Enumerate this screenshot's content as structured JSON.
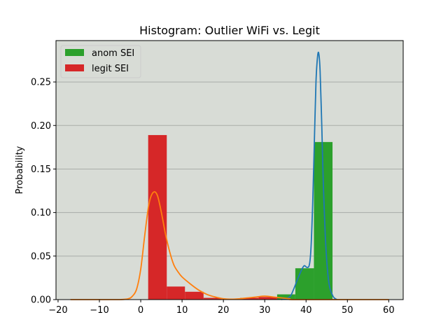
{
  "chart_data": {
    "type": "bar",
    "title": "Histogram: Outlier WiFi  vs. Legit",
    "xlabel": "",
    "ylabel": "Probability",
    "xlim": [
      -20.5,
      63.5
    ],
    "ylim": [
      0,
      0.2975
    ],
    "xticks": [
      -20,
      -10,
      0,
      10,
      20,
      30,
      40,
      50,
      60
    ],
    "yticks": [
      0.0,
      0.05,
      0.1,
      0.15,
      0.2,
      0.25
    ],
    "xtick_labels": [
      "−20",
      "−10",
      "0",
      "10",
      "20",
      "30",
      "40",
      "50",
      "60"
    ],
    "ytick_labels": [
      "0.00",
      "0.05",
      "0.10",
      "0.15",
      "0.20",
      "0.25"
    ],
    "grid": "horizontal",
    "background": "#d8dcd6",
    "legend_position": "top-left",
    "series": [
      {
        "name": "anom SEI",
        "kind": "histogram",
        "color": "#2ca02c",
        "bins": [
          {
            "x0": 33.0,
            "x1": 37.4,
            "y": 0.006
          },
          {
            "x0": 37.4,
            "x1": 41.9,
            "y": 0.036
          },
          {
            "x0": 41.9,
            "x1": 46.4,
            "y": 0.181
          }
        ]
      },
      {
        "name": "legit SEI",
        "kind": "histogram",
        "color": "#d62728",
        "bins": [
          {
            "x0": 1.8,
            "x1": 6.3,
            "y": 0.189
          },
          {
            "x0": 6.3,
            "x1": 10.7,
            "y": 0.015
          },
          {
            "x0": 10.7,
            "x1": 15.2,
            "y": 0.009
          },
          {
            "x0": 15.2,
            "x1": 19.6,
            "y": 0.002
          },
          {
            "x0": 19.6,
            "x1": 24.1,
            "y": 0.001
          },
          {
            "x0": 24.1,
            "x1": 28.5,
            "y": 0.002
          },
          {
            "x0": 28.5,
            "x1": 33.0,
            "y": 0.003
          }
        ]
      },
      {
        "name": "",
        "kind": "kde",
        "color": "#1f77b4",
        "x": [
          34,
          36,
          37,
          38,
          39,
          39.6,
          40.2,
          40.8,
          41.2,
          41.6,
          42.0,
          42.4,
          42.8,
          43.1,
          43.4,
          43.8,
          44.2,
          44.8,
          45.5,
          46.5,
          47.5
        ],
        "y": [
          0.0,
          0.003,
          0.012,
          0.024,
          0.035,
          0.039,
          0.037,
          0.04,
          0.06,
          0.11,
          0.18,
          0.25,
          0.28,
          0.282,
          0.262,
          0.2,
          0.13,
          0.06,
          0.02,
          0.004,
          0.0
        ]
      },
      {
        "name": "",
        "kind": "kde",
        "color": "#ff7f0e",
        "x": [
          -17,
          -10,
          -5,
          -3,
          -2,
          -1,
          0,
          1,
          2,
          3,
          4,
          5,
          6,
          7,
          8,
          9,
          10,
          12,
          14,
          16,
          18,
          20,
          22,
          24,
          26,
          28,
          30,
          32,
          34,
          36,
          38,
          60
        ],
        "y": [
          0.0,
          0.0,
          0.0,
          0.001,
          0.004,
          0.012,
          0.035,
          0.075,
          0.11,
          0.123,
          0.12,
          0.1,
          0.075,
          0.055,
          0.04,
          0.032,
          0.026,
          0.018,
          0.011,
          0.006,
          0.003,
          0.001,
          0.0005,
          0.001,
          0.002,
          0.003,
          0.004,
          0.003,
          0.002,
          0.001,
          0.0,
          0.0
        ]
      }
    ]
  }
}
